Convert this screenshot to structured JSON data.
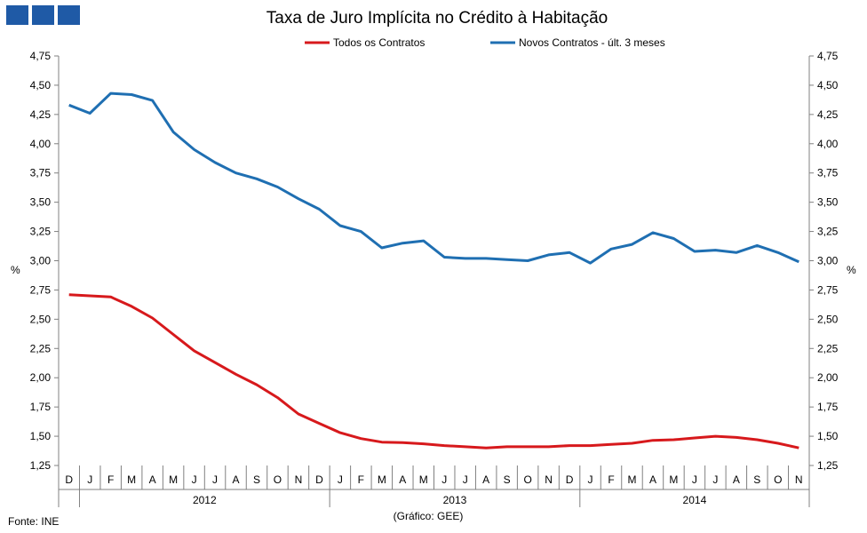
{
  "chart_data": {
    "type": "line",
    "title": "Taxa de Juro Implícita no Crédito à Habitação",
    "ylabel_left": "%",
    "ylabel_right": "%",
    "ylim": [
      1.25,
      4.75
    ],
    "yticks": [
      "1,25",
      "1,50",
      "1,75",
      "2,00",
      "2,25",
      "2,50",
      "2,75",
      "3,00",
      "3,25",
      "3,50",
      "3,75",
      "4,00",
      "4,25",
      "4,50",
      "4,75"
    ],
    "x": [
      "D",
      "J",
      "F",
      "M",
      "A",
      "M",
      "J",
      "J",
      "A",
      "S",
      "O",
      "N",
      "D",
      "J",
      "F",
      "M",
      "A",
      "M",
      "J",
      "J",
      "A",
      "S",
      "O",
      "N",
      "D",
      "J",
      "F",
      "M",
      "A",
      "M",
      "J",
      "J",
      "A",
      "S",
      "O",
      "N"
    ],
    "year_groups": [
      {
        "label": "2012",
        "start": 1,
        "end": 12
      },
      {
        "label": "2013",
        "start": 13,
        "end": 24
      },
      {
        "label": "2014",
        "start": 25,
        "end": 35
      }
    ],
    "series": [
      {
        "name": "Todos os Contratos",
        "color": "#d7191c",
        "values": [
          2.71,
          2.7,
          2.69,
          2.61,
          2.51,
          2.37,
          2.23,
          2.13,
          2.03,
          1.94,
          1.83,
          1.69,
          1.61,
          1.53,
          1.48,
          1.45,
          1.445,
          1.435,
          1.42,
          1.41,
          1.4,
          1.41,
          1.41,
          1.41,
          1.42,
          1.42,
          1.43,
          1.44,
          1.465,
          1.47,
          1.485,
          1.5,
          1.49,
          1.47,
          1.44,
          1.4
        ]
      },
      {
        "name": "Novos Contratos - últ. 3 meses",
        "color": "#1f6fb2",
        "values": [
          4.33,
          4.26,
          4.43,
          4.42,
          4.37,
          4.1,
          3.95,
          3.84,
          3.75,
          3.7,
          3.63,
          3.53,
          3.44,
          3.3,
          3.25,
          3.11,
          3.15,
          3.17,
          3.03,
          3.02,
          3.02,
          3.01,
          3.0,
          3.05,
          3.07,
          2.98,
          3.1,
          3.14,
          3.24,
          3.19,
          3.08,
          3.09,
          3.07,
          3.13,
          3.07,
          2.99
        ]
      }
    ],
    "legend_placement": "top-center",
    "grid": false
  },
  "footer": {
    "source": "Fonte: INE",
    "credit": "(Gráfico: GEE)"
  },
  "colors": {
    "logo": "#1f5aa6",
    "axis": "#808080"
  }
}
